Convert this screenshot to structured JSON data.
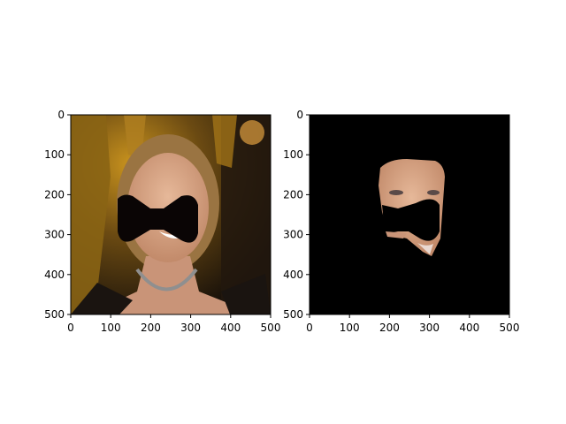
{
  "figure": {
    "background": "#ffffff"
  },
  "chart_data": [
    {
      "type": "image",
      "description_of_content": "photo",
      "xlim": [
        0,
        500
      ],
      "ylim": [
        500,
        0
      ],
      "xticks": [
        "0",
        "100",
        "200",
        "300",
        "400",
        "500"
      ],
      "yticks": [
        "0",
        "100",
        "200",
        "300",
        "400",
        "500"
      ],
      "colors": {
        "bg_gold": "#7a5a10",
        "bg_dark": "#1a140c",
        "skin": "#d9a888",
        "hair": "#b28a55",
        "mask": "#0a0505"
      }
    },
    {
      "type": "image",
      "description_of_content": "masked face region",
      "xlim": [
        0,
        500
      ],
      "ylim": [
        500,
        0
      ],
      "xticks": [
        "0",
        "100",
        "200",
        "300",
        "400",
        "500"
      ],
      "yticks": [
        "0",
        "100",
        "200",
        "300",
        "400",
        "500"
      ],
      "colors": {
        "background": "#000000",
        "skin": "#d9a888",
        "mask": "#000000"
      }
    }
  ]
}
